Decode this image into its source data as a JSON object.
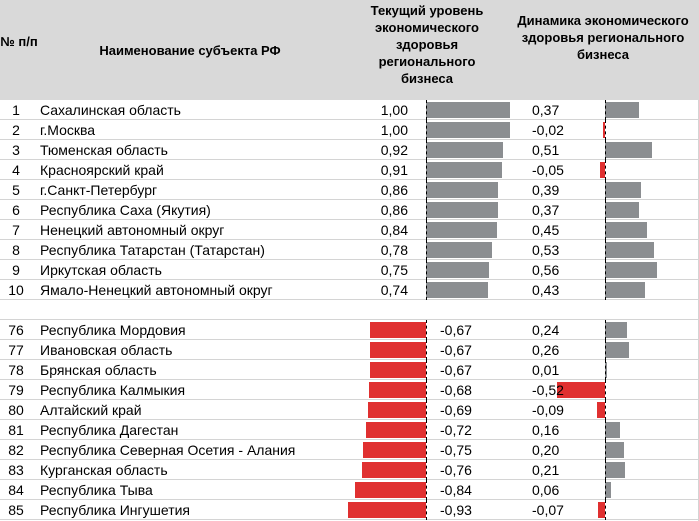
{
  "header": {
    "num": "№ п/п",
    "name": "Наименование субъекта РФ",
    "col1": "Текущий уровень экономического здоровья регионального бизнеса",
    "col2": "Динамика экономического здоровья регионального бизнеса"
  },
  "colors": {
    "positive": "#8b8e91",
    "negative": "#e03030",
    "header_bg": "#d9d9d9"
  },
  "chart_data": {
    "type": "table",
    "columns": [
      "№ п/п",
      "Наименование субъекта РФ",
      "Текущий уровень экономического здоровья регионального бизнеса",
      "Динамика экономического здоровья регионального бизнеса"
    ],
    "top": [
      {
        "n": "1",
        "name": "Сахалинская область",
        "level": "1,00",
        "dyn": "0,37"
      },
      {
        "n": "2",
        "name": "г.Москва",
        "level": "1,00",
        "dyn": "-0,02"
      },
      {
        "n": "3",
        "name": "Тюменская область",
        "level": "0,92",
        "dyn": "0,51"
      },
      {
        "n": "4",
        "name": "Красноярский край",
        "level": "0,91",
        "dyn": "-0,05"
      },
      {
        "n": "5",
        "name": "г.Санкт-Петербург",
        "level": "0,86",
        "dyn": "0,39"
      },
      {
        "n": "6",
        "name": "Республика Саха (Якутия)",
        "level": "0,86",
        "dyn": "0,37"
      },
      {
        "n": "7",
        "name": "Ненецкий автономный округ",
        "level": "0,84",
        "dyn": "0,45"
      },
      {
        "n": "8",
        "name": "Республика Татарстан (Татарстан)",
        "level": "0,78",
        "dyn": "0,53"
      },
      {
        "n": "9",
        "name": "Иркутская область",
        "level": "0,75",
        "dyn": "0,56"
      },
      {
        "n": "10",
        "name": "Ямало-Ненецкий автономный округ",
        "level": "0,74",
        "dyn": "0,43"
      }
    ],
    "bottom": [
      {
        "n": "76",
        "name": "Республика Мордовия",
        "level": "-0,67",
        "dyn": "0,24"
      },
      {
        "n": "77",
        "name": "Ивановская область",
        "level": "-0,67",
        "dyn": "0,26"
      },
      {
        "n": "78",
        "name": "Брянская область",
        "level": "-0,67",
        "dyn": "0,01"
      },
      {
        "n": "79",
        "name": "Республика Калмыкия",
        "level": "-0,68",
        "dyn": "-0,52"
      },
      {
        "n": "80",
        "name": "Алтайский край",
        "level": "-0,69",
        "dyn": "-0,09"
      },
      {
        "n": "81",
        "name": "Республика Дагестан",
        "level": "-0,72",
        "dyn": "0,16"
      },
      {
        "n": "82",
        "name": "Республика Северная Осетия - Алания",
        "level": "-0,75",
        "dyn": "0,20"
      },
      {
        "n": "83",
        "name": "Курганская область",
        "level": "-0,76",
        "dyn": "0,21"
      },
      {
        "n": "84",
        "name": "Республика Тыва",
        "level": "-0,84",
        "dyn": "0,06"
      },
      {
        "n": "85",
        "name": "Республика Ингушетия",
        "level": "-0,93",
        "dyn": "-0,07"
      }
    ]
  }
}
